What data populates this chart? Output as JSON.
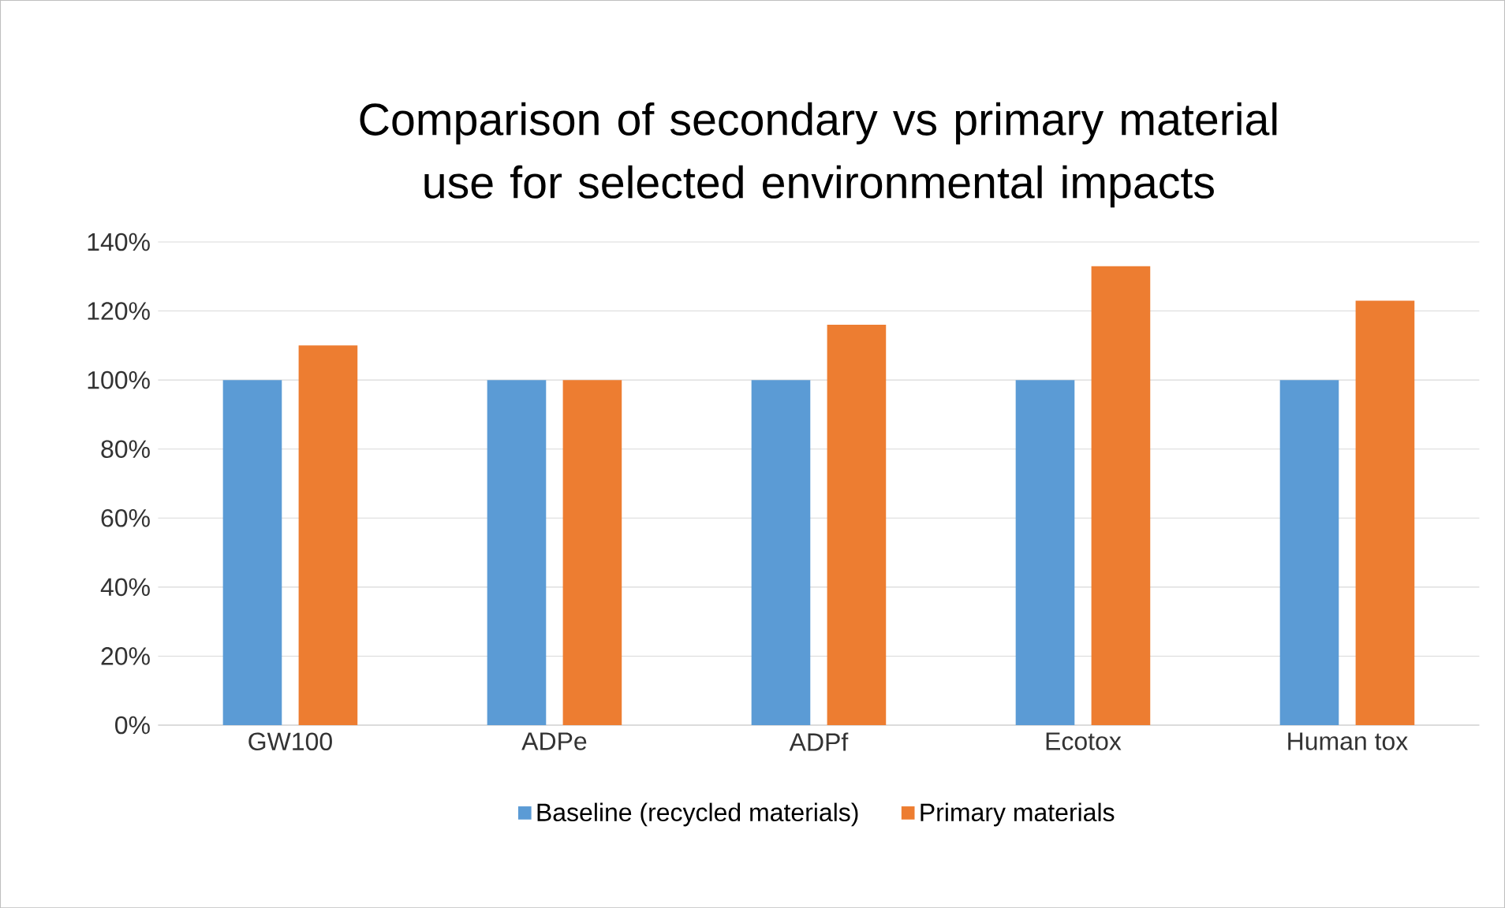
{
  "chart_data": {
    "type": "bar",
    "title": "Comparison of secondary vs primary material use for selected environmental impacts",
    "categories": [
      "GW100",
      "ADPe",
      "ADPf",
      "Ecotox",
      "Human tox"
    ],
    "series": [
      {
        "name": "Baseline (recycled materials)",
        "color": "#5b9bd5",
        "values": [
          100,
          100,
          100,
          100,
          100
        ]
      },
      {
        "name": "Primary materials",
        "color": "#ed7d31",
        "values": [
          110,
          100,
          116,
          133,
          123
        ]
      }
    ],
    "ylim": [
      0,
      140
    ],
    "yticks": [
      {
        "value": 0,
        "label": "0%"
      },
      {
        "value": 20,
        "label": "20%"
      },
      {
        "value": 40,
        "label": "40%"
      },
      {
        "value": 60,
        "label": "60%"
      },
      {
        "value": 80,
        "label": "80%"
      },
      {
        "value": 100,
        "label": "100%"
      },
      {
        "value": 120,
        "label": "120%"
      },
      {
        "value": 140,
        "label": "140%"
      }
    ],
    "grid": "y",
    "legend": "bottom"
  }
}
